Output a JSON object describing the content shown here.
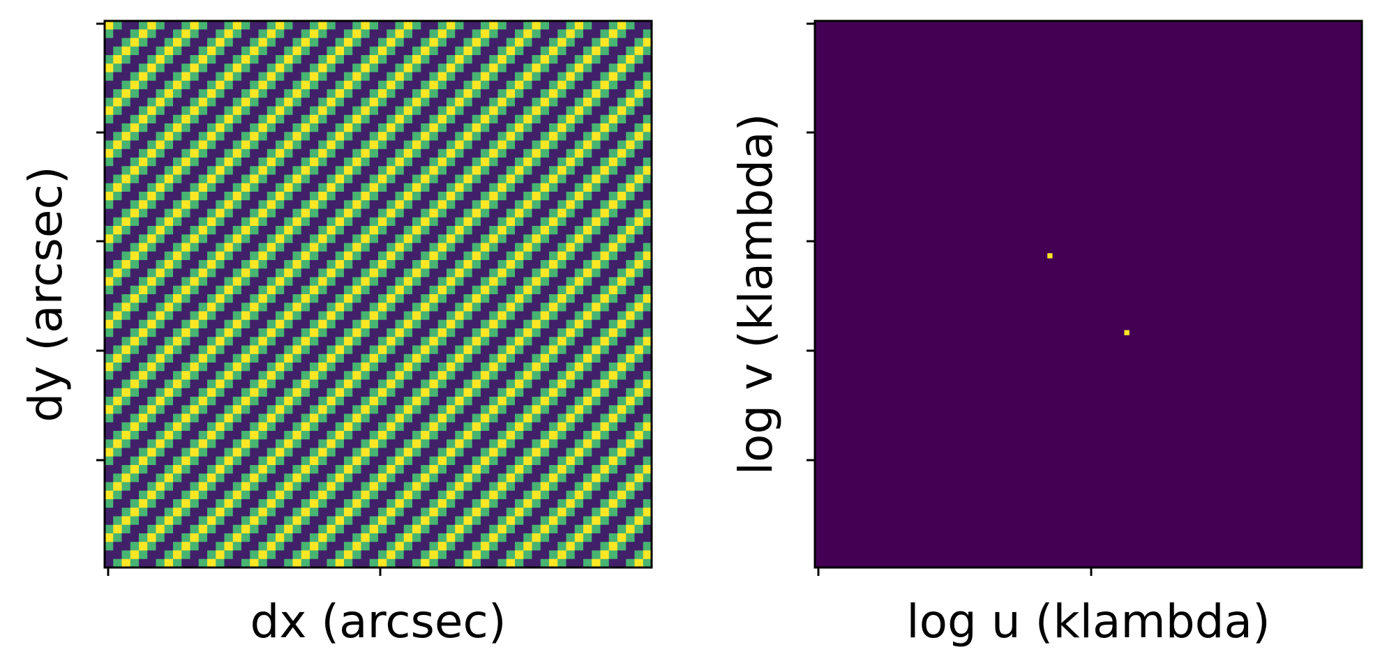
{
  "chart_data": [
    {
      "type": "heatmap",
      "xlabel": "dx (arcsec)",
      "ylabel": "dy (arcsec)",
      "grid": false,
      "tick_labels_shown": false,
      "pixels": [
        64,
        64
      ],
      "pattern": "diagonal sinusoidal fringes running from lower-left to upper-right",
      "fringe_period_pixels": 5,
      "fringe_count": 25,
      "value_range": [
        -1,
        1
      ],
      "colormap": [
        "#440154",
        "#3b528b",
        "#21918c",
        "#5ec962",
        "#fde725"
      ]
    },
    {
      "type": "heatmap",
      "xlabel": "log u (klambda)",
      "ylabel": "log v (klambda)",
      "grid": false,
      "tick_labels_shown": false,
      "pixels": [
        64,
        64
      ],
      "background_value": 0,
      "background_color": "#440154",
      "peak_color": "#fde725",
      "peaks": [
        {
          "col": 27,
          "row": 27,
          "value": 1
        },
        {
          "col": 36,
          "row": 36,
          "value": 1
        }
      ]
    }
  ]
}
